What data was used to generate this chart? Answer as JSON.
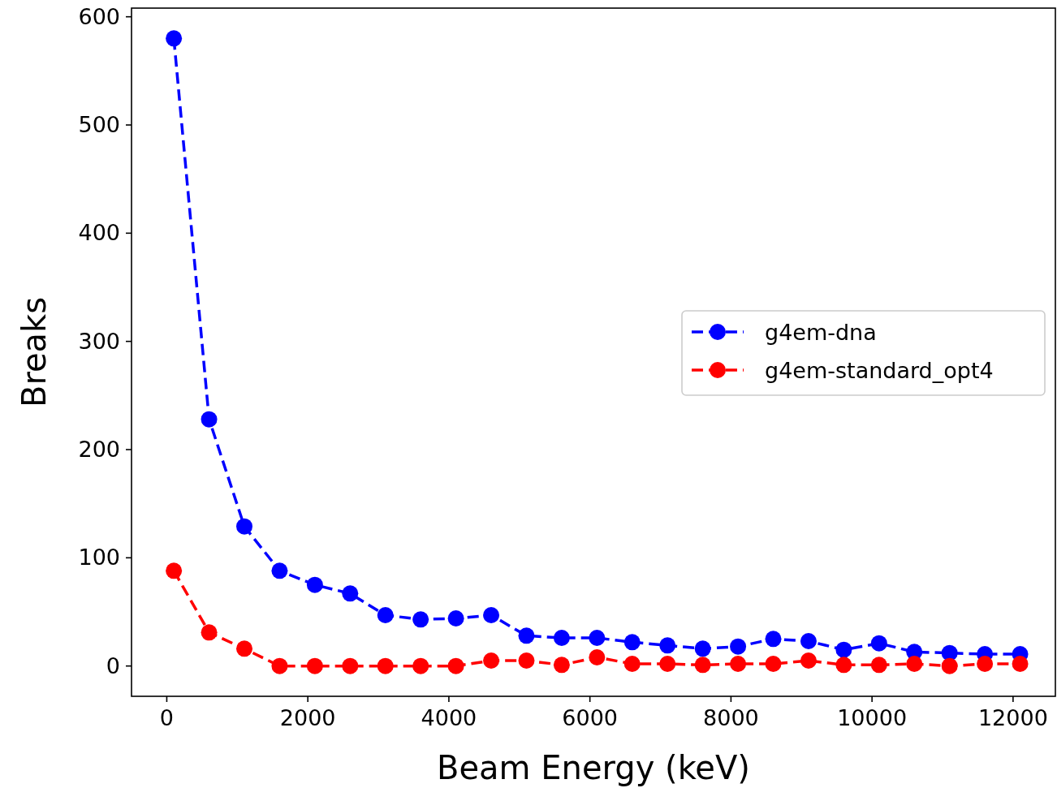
{
  "chart_data": {
    "type": "line",
    "xlabel": "Beam Energy (keV)",
    "ylabel": "Breaks",
    "x": [
      100,
      600,
      1100,
      1600,
      2100,
      2600,
      3100,
      3600,
      4100,
      4600,
      5100,
      5600,
      6100,
      6600,
      7100,
      7600,
      8100,
      8600,
      9100,
      9600,
      10100,
      10600,
      11100,
      11600,
      12100
    ],
    "series": [
      {
        "name": "g4em-dna",
        "color": "#0000ff",
        "values": [
          580,
          228,
          129,
          88,
          75,
          67,
          47,
          43,
          44,
          47,
          28,
          26,
          26,
          22,
          19,
          16,
          18,
          25,
          23,
          15,
          21,
          13,
          12,
          11,
          11
        ]
      },
      {
        "name": "g4em-standard_opt4",
        "color": "#ff0000",
        "values": [
          88,
          31,
          16,
          0,
          0,
          0,
          0,
          0,
          0,
          5,
          5,
          1,
          8,
          2,
          2,
          1,
          2,
          2,
          5,
          1,
          1,
          2,
          0,
          2,
          2
        ]
      }
    ],
    "xlim": [
      -500,
      12600
    ],
    "ylim": [
      -28,
      608
    ],
    "xticks": [
      0,
      2000,
      4000,
      6000,
      8000,
      10000,
      12000
    ],
    "yticks": [
      0,
      100,
      200,
      300,
      400,
      500,
      600
    ],
    "grid": false,
    "legend": "right",
    "marker": "circle",
    "line_style": "dashed"
  }
}
